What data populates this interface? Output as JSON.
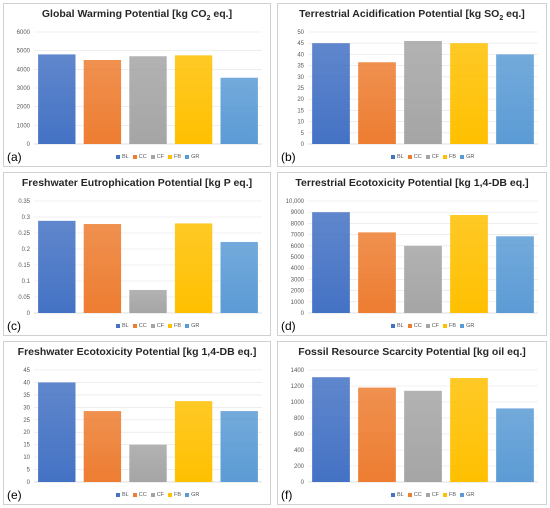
{
  "colors": {
    "BL": "#4472C4",
    "CC": "#ED7D31",
    "CF": "#A5A5A5",
    "FB": "#FFC000",
    "GR": "#5B9BD5"
  },
  "chart_data": [
    {
      "type": "bar",
      "letter": "(a)",
      "title_parts": [
        "Global Warming Potential [kg CO",
        "2",
        " eq.]"
      ],
      "categories": [
        "BL",
        "CC",
        "CF",
        "FB",
        "GR"
      ],
      "values": [
        4800,
        4500,
        4700,
        4750,
        3550
      ],
      "ylim": [
        0,
        6000
      ],
      "yticks": [
        "0",
        "1000",
        "2000",
        "3000",
        "4000",
        "5000",
        "6000"
      ],
      "grid": true,
      "legend": "bottom"
    },
    {
      "type": "bar",
      "letter": "(b)",
      "title_parts": [
        "Terrestrial Acidification Potential [kg SO",
        "2",
        " eq.]"
      ],
      "categories": [
        "BL",
        "CC",
        "CF",
        "FB",
        "GR"
      ],
      "values": [
        45,
        36.5,
        46,
        45,
        40
      ],
      "ylim": [
        0,
        50
      ],
      "yticks": [
        "0",
        "5",
        "10",
        "15",
        "20",
        "25",
        "30",
        "35",
        "40",
        "45",
        "50"
      ],
      "grid": true,
      "legend": "bottom"
    },
    {
      "type": "bar",
      "letter": "(c)",
      "title_parts": [
        "Freshwater Eutrophication Potential [kg P eq.]"
      ],
      "categories": [
        "BL",
        "CC",
        "CF",
        "FB",
        "GR"
      ],
      "values": [
        0.288,
        0.278,
        0.072,
        0.28,
        0.222
      ],
      "ylim": [
        0,
        0.35
      ],
      "yticks": [
        "0",
        "0.05",
        "0.1",
        "0.15",
        "0.2",
        "0.25",
        "0.3",
        "0.35"
      ],
      "grid": true,
      "legend": "bottom"
    },
    {
      "type": "bar",
      "letter": "(d)",
      "title_parts": [
        "Terrestrial Ecotoxicity Potential [kg 1,4-DB eq.]"
      ],
      "categories": [
        "BL",
        "CC",
        "CF",
        "FB",
        "GR"
      ],
      "values": [
        9000,
        7200,
        6000,
        8750,
        6850
      ],
      "ylim": [
        0,
        10000
      ],
      "yticks": [
        "0",
        "1000",
        "2000",
        "3000",
        "4000",
        "5000",
        "6000",
        "7000",
        "8000",
        "9000",
        "10,000"
      ],
      "grid": true,
      "legend": "bottom"
    },
    {
      "type": "bar",
      "letter": "(e)",
      "title_parts": [
        "Freshwater Ecotoxicity Potential [kg 1,4-DB eq.]"
      ],
      "categories": [
        "BL",
        "CC",
        "CF",
        "FB",
        "GR"
      ],
      "values": [
        40,
        28.5,
        15,
        32.5,
        28.5
      ],
      "ylim": [
        0,
        45
      ],
      "yticks": [
        "0",
        "5",
        "10",
        "15",
        "20",
        "25",
        "30",
        "35",
        "40",
        "45"
      ],
      "grid": true,
      "legend": "bottom"
    },
    {
      "type": "bar",
      "letter": "(f)",
      "title_parts": [
        "Fossil Resource Scarcity Potential [kg oil eq.]"
      ],
      "categories": [
        "BL",
        "CC",
        "CF",
        "FB",
        "GR"
      ],
      "values": [
        1310,
        1180,
        1140,
        1300,
        920
      ],
      "ylim": [
        0,
        1400
      ],
      "yticks": [
        "0",
        "200",
        "400",
        "600",
        "800",
        "1000",
        "1200",
        "1400"
      ],
      "grid": true,
      "legend": "bottom"
    }
  ]
}
